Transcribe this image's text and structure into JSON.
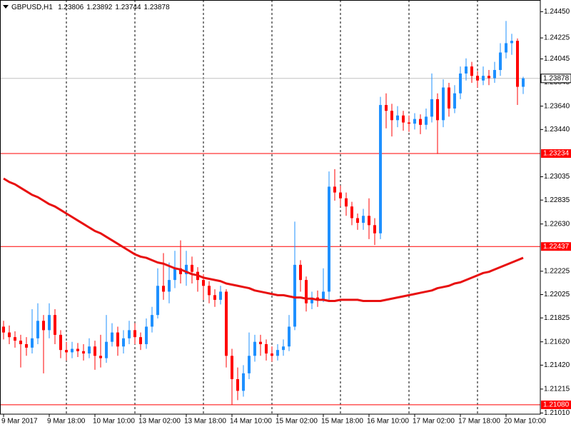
{
  "chart_data": {
    "type": "candlestick",
    "symbol": "GBPUSD,H1",
    "up_color": "#1e90ff",
    "down_color": "#ff0000",
    "level_color": "#ff0000",
    "price_line_color": "#c0c0c0",
    "grid": true,
    "ylim": [
      1.21,
      1.2455
    ],
    "yticks": [
      {
        "value": 1.2445,
        "label": "1.24450"
      },
      1.24225,
      1.24045,
      1.23845,
      {
        "value": 1.2364,
        "label": "1.23640"
      },
      {
        "value": 1.2344,
        "label": "1.23440"
      },
      1.23035,
      1.22835,
      {
        "value": 1.2263,
        "label": "1.22630"
      },
      1.22225,
      1.22025,
      1.21825,
      {
        "value": 1.2162,
        "label": "1.21620"
      },
      {
        "value": 1.2142,
        "label": "1.21420"
      },
      1.21215,
      {
        "value": 1.2101,
        "label": "1.21010"
      }
    ],
    "levels": [
      1.23234,
      1.22437,
      {
        "value": 1.2108,
        "label": "1.21080"
      }
    ],
    "categories": [
      "9 Mar 2017",
      null,
      null,
      null,
      null,
      null,
      null,
      null,
      "9 Mar 18:00",
      null,
      null,
      null,
      null,
      null,
      null,
      null,
      "10 Mar 10:00",
      null,
      null,
      null,
      null,
      null,
      null,
      null,
      "13 Mar 02:00",
      null,
      null,
      null,
      null,
      null,
      null,
      null,
      "13 Mar 18:00",
      null,
      null,
      null,
      null,
      null,
      null,
      null,
      "14 Mar 10:00",
      null,
      null,
      null,
      null,
      null,
      null,
      null,
      "15 Mar 02:00",
      null,
      null,
      null,
      null,
      null,
      null,
      null,
      "15 Mar 18:00",
      null,
      null,
      null,
      null,
      null,
      null,
      null,
      "16 Mar 10:00",
      null,
      null,
      null,
      null,
      null,
      null,
      null,
      "17 Mar 02:00",
      null,
      null,
      null,
      null,
      null,
      null,
      null,
      "17 Mar 18:00",
      null,
      null,
      null,
      null,
      null,
      null,
      null,
      "20 Mar 10:00",
      null,
      null,
      null
    ],
    "open": [
      1.2175,
      1.217,
      1.2166,
      1.2163,
      1.216,
      1.2157,
      1.2165,
      1.218,
      1.2172,
      1.2185,
      1.2168,
      1.2155,
      1.2153,
      1.2156,
      1.2154,
      1.2152,
      1.2158,
      1.215,
      1.2148,
      1.2162,
      1.217,
      1.2158,
      1.2165,
      1.2172,
      1.2166,
      1.216,
      1.2175,
      1.2185,
      1.221,
      1.2205,
      1.2215,
      1.2225,
      1.222,
      1.2228,
      1.2222,
      1.2215,
      1.221,
      1.2202,
      1.2198,
      1.2205,
      1.215,
      1.213,
      1.212,
      1.2135,
      1.215,
      1.2162,
      1.216,
      1.2152,
      1.215,
      1.2155,
      1.2158,
      1.2175,
      1.2228,
      1.2215,
      1.2195,
      1.22,
      1.2198,
      1.2205,
      1.2295,
      1.229,
      1.2285,
      1.2278,
      1.2268,
      1.2264,
      1.227,
      1.2262,
      1.2255,
      1.2365,
      1.236,
      1.2352,
      1.2356,
      1.235,
      1.2349,
      1.2353,
      1.2348,
      1.2355,
      1.237,
      1.2352,
      1.238,
      1.2362,
      1.2375,
      1.2392,
      1.2398,
      1.239,
      1.2386,
      1.239,
      1.2388,
      1.2395,
      1.241,
      1.2418,
      1.242,
      1.23806
    ],
    "high": [
      1.218,
      1.2176,
      1.2171,
      1.2168,
      1.2166,
      1.219,
      1.2195,
      1.2185,
      1.2195,
      1.219,
      1.2172,
      1.2162,
      1.2162,
      1.2161,
      1.216,
      1.2165,
      1.2163,
      1.2168,
      1.2185,
      1.2178,
      1.2175,
      1.2172,
      1.218,
      1.2178,
      1.217,
      1.2182,
      1.2192,
      1.2225,
      1.2238,
      1.223,
      1.224,
      1.2249,
      1.224,
      1.2235,
      1.2226,
      1.222,
      1.2214,
      1.2207,
      1.221,
      1.2207,
      1.2156,
      1.214,
      1.2142,
      1.217,
      1.2168,
      1.2168,
      1.2164,
      1.2158,
      1.216,
      1.2164,
      1.2185,
      1.2265,
      1.2232,
      1.2218,
      1.2205,
      1.2206,
      1.2225,
      1.2308,
      1.231,
      1.2296,
      1.229,
      1.2282,
      1.2272,
      1.2276,
      1.2285,
      1.2268,
      1.2372,
      1.2375,
      1.2366,
      1.2364,
      1.236,
      1.2356,
      1.2358,
      1.2357,
      1.2362,
      1.2392,
      1.2375,
      1.2387,
      1.2384,
      1.2382,
      1.2398,
      1.2405,
      1.2402,
      1.2394,
      1.2398,
      1.2395,
      1.2402,
      1.2418,
      1.2437,
      1.2426,
      1.2422,
      1.23892
    ],
    "low": [
      1.2164,
      1.216,
      1.2157,
      1.214,
      1.215,
      1.2152,
      1.216,
      1.2135,
      1.2165,
      1.216,
      1.2148,
      1.2146,
      1.2148,
      1.2149,
      1.2146,
      1.2148,
      1.2138,
      1.214,
      1.2144,
      1.2158,
      1.215,
      1.2152,
      1.216,
      1.216,
      1.2155,
      1.2156,
      1.217,
      1.2182,
      1.2198,
      1.2195,
      1.2208,
      1.2212,
      1.221,
      1.2212,
      1.2205,
      1.2198,
      1.2195,
      1.2192,
      1.2194,
      1.214,
      1.2108,
      1.2112,
      1.2115,
      1.213,
      1.2145,
      1.215,
      1.2146,
      1.2145,
      1.2146,
      1.215,
      1.2154,
      1.2172,
      1.2205,
      1.2188,
      1.219,
      1.2192,
      1.2196,
      1.2198,
      1.2283,
      1.2278,
      1.227,
      1.2262,
      1.2258,
      1.2258,
      1.225,
      1.2245,
      1.225,
      1.2345,
      1.2338,
      1.2346,
      1.2343,
      1.2342,
      1.2344,
      1.234,
      1.2344,
      1.235,
      1.2323,
      1.2346,
      1.2355,
      1.2358,
      1.237,
      1.2386,
      1.2384,
      1.238,
      1.2382,
      1.2382,
      1.2384,
      1.239,
      1.2405,
      1.2408,
      1.2365,
      1.23744
    ],
    "close": [
      1.217,
      1.2166,
      1.2163,
      1.216,
      1.2157,
      1.2165,
      1.218,
      1.2172,
      1.2185,
      1.2168,
      1.2155,
      1.2153,
      1.2156,
      1.2154,
      1.2152,
      1.2158,
      1.215,
      1.2148,
      1.2162,
      1.217,
      1.2158,
      1.2165,
      1.2172,
      1.2166,
      1.216,
      1.2175,
      1.2185,
      1.221,
      1.2205,
      1.2215,
      1.2225,
      1.222,
      1.2228,
      1.2222,
      1.2215,
      1.221,
      1.2202,
      1.2198,
      1.2205,
      1.215,
      1.213,
      1.212,
      1.2135,
      1.215,
      1.2162,
      1.216,
      1.2152,
      1.215,
      1.2155,
      1.2158,
      1.2175,
      1.2228,
      1.2215,
      1.2195,
      1.22,
      1.2198,
      1.2205,
      1.2295,
      1.229,
      1.2285,
      1.2278,
      1.2268,
      1.2264,
      1.227,
      1.2262,
      1.2255,
      1.2365,
      1.236,
      1.2352,
      1.2356,
      1.235,
      1.2349,
      1.2353,
      1.2348,
      1.2355,
      1.237,
      1.2352,
      1.238,
      1.2362,
      1.2375,
      1.2392,
      1.2398,
      1.239,
      1.2386,
      1.239,
      1.2388,
      1.2395,
      1.241,
      1.2418,
      1.242,
      1.23806,
      1.23878
    ],
    "moving_average": {
      "color": "#e81010",
      "values": [
        1.2302,
        1.2299,
        1.2297,
        1.2294,
        1.2291,
        1.2288,
        1.2286,
        1.2283,
        1.228,
        1.2278,
        1.2275,
        1.2272,
        1.2269,
        1.2266,
        1.2263,
        1.226,
        1.2257,
        1.2255,
        1.2252,
        1.2249,
        1.2246,
        1.2243,
        1.224,
        1.2237,
        1.2235,
        1.2234,
        1.2232,
        1.223,
        1.2229,
        1.2227,
        1.2225,
        1.2224,
        1.2222,
        1.222,
        1.2219,
        1.2217,
        1.2216,
        1.2215,
        1.2214,
        1.2212,
        1.2211,
        1.221,
        1.2209,
        1.2208,
        1.2206,
        1.2205,
        1.2204,
        1.2203,
        1.2202,
        1.2202,
        1.2201,
        1.22,
        1.22,
        1.2199,
        1.2199,
        1.2198,
        1.2198,
        1.2197,
        1.2197,
        1.2198,
        1.2198,
        1.2198,
        1.2198,
        1.2197,
        1.2197,
        1.2197,
        1.2197,
        1.2198,
        1.2199,
        1.22,
        1.2201,
        1.2202,
        1.2203,
        1.2204,
        1.2205,
        1.2206,
        1.2208,
        1.2209,
        1.221,
        1.2212,
        1.2213,
        1.2215,
        1.2217,
        1.2219,
        1.2221,
        1.2222,
        1.2224,
        1.2226,
        1.2228,
        1.223,
        1.2232,
        1.2234
      ]
    }
  }
}
